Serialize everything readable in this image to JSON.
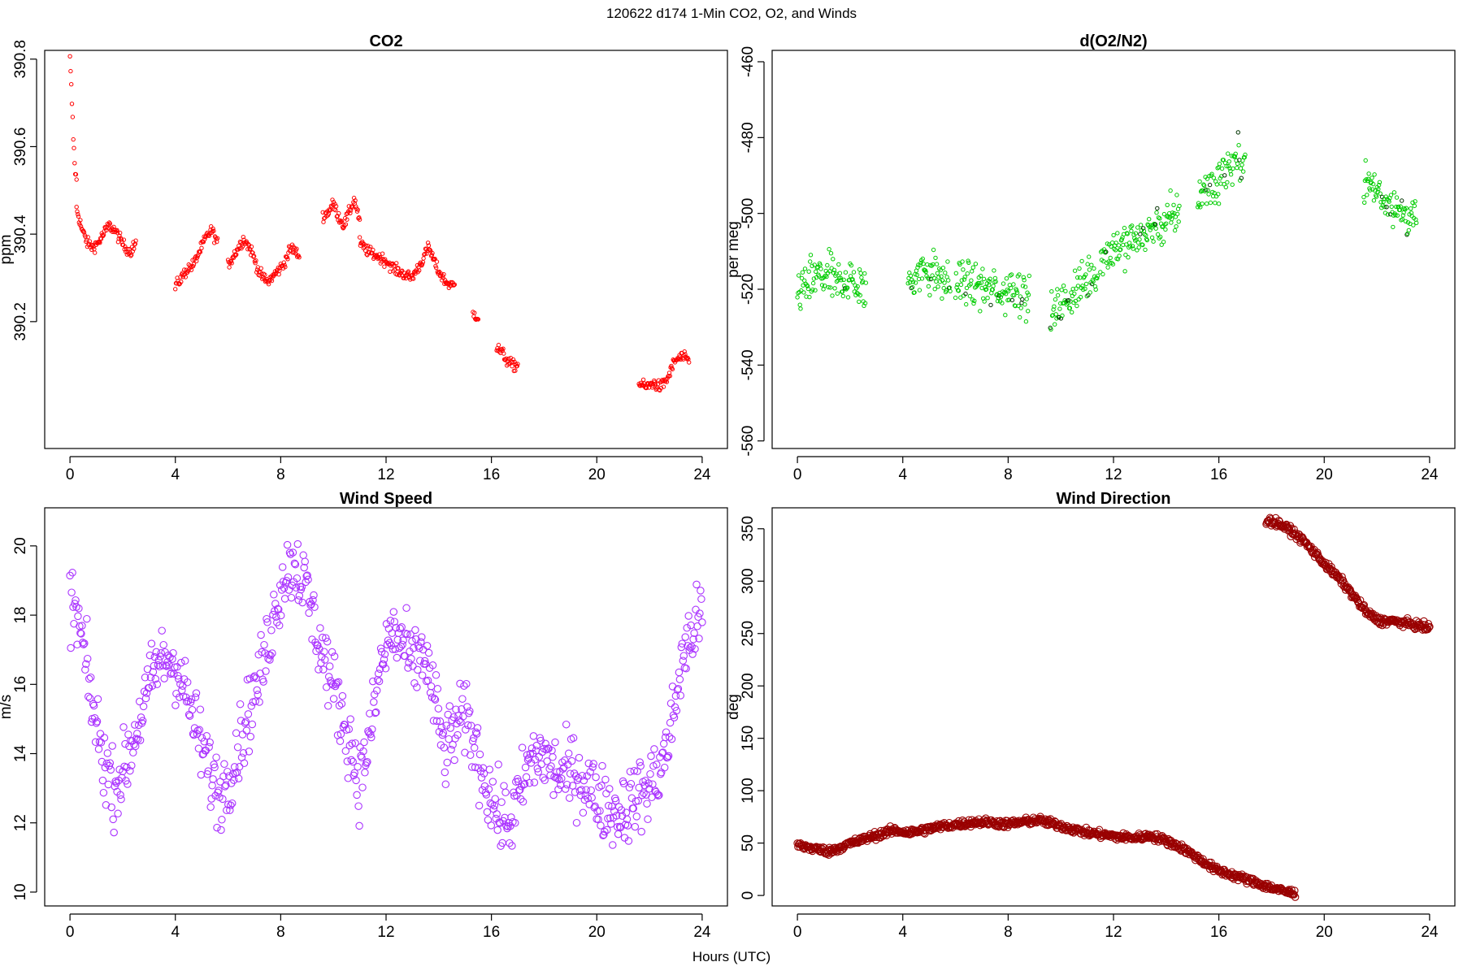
{
  "suptitle": "120622   d174   1-Min CO2, O2, and Winds",
  "xlabel": "Hours (UTC)",
  "chart_data": [
    {
      "type": "scatter",
      "title": "CO2",
      "ylabel": "ppm",
      "color": "#ff0000",
      "xlim": [
        -0.96,
        24.96
      ],
      "ylim": [
        389.91,
        390.82
      ],
      "xticks": [
        0,
        4,
        8,
        12,
        16,
        20,
        24
      ],
      "yticks": [
        390.2,
        390.4,
        390.6,
        390.8
      ],
      "segments": [
        {
          "x0": 0.0,
          "x1": 0.25,
          "y": [
            390.8,
            390.72,
            390.62,
            390.55,
            390.52
          ]
        },
        {
          "x0": 0.25,
          "x1": 2.5,
          "y": [
            390.46,
            390.41,
            390.38,
            390.37,
            390.38,
            390.4,
            390.42,
            390.41,
            390.39,
            390.37,
            390.36,
            390.38
          ]
        },
        {
          "x0": 4.0,
          "x1": 5.6,
          "y": [
            390.28,
            390.3,
            390.32,
            390.33,
            390.36,
            390.39,
            390.41,
            390.38
          ]
        },
        {
          "x0": 6.0,
          "x1": 8.7,
          "y": [
            390.33,
            390.36,
            390.39,
            390.36,
            390.31,
            390.29,
            390.31,
            390.33,
            390.37,
            390.35
          ]
        },
        {
          "x0": 9.6,
          "x1": 11.0,
          "y": [
            390.44,
            390.45,
            390.47,
            390.44,
            390.42,
            390.45,
            390.48,
            390.43
          ]
        },
        {
          "x0": 11.0,
          "x1": 14.6,
          "y": [
            390.38,
            390.36,
            390.35,
            390.34,
            390.32,
            390.31,
            390.3,
            390.33,
            390.37,
            390.32,
            390.29,
            390.28
          ]
        },
        {
          "x0": 15.3,
          "x1": 15.5,
          "y": [
            390.22,
            390.21
          ]
        },
        {
          "x0": 16.2,
          "x1": 17.0,
          "y": [
            390.14,
            390.13,
            390.11,
            390.1,
            390.1
          ]
        },
        {
          "x0": 21.6,
          "x1": 23.5,
          "y": [
            390.06,
            390.05,
            390.06,
            390.05,
            390.07,
            390.11,
            390.12,
            390.11
          ]
        }
      ]
    },
    {
      "type": "scatter",
      "title": "d(O2/N2)",
      "ylabel": "per meg",
      "color": "#00cc00",
      "xlim": [
        -0.96,
        24.96
      ],
      "ylim": [
        -562,
        -457
      ],
      "xticks": [
        0,
        4,
        8,
        12,
        16,
        20,
        24
      ],
      "yticks": [
        -560,
        -540,
        -520,
        -500,
        -480,
        -460
      ],
      "segments": [
        {
          "x0": 0.0,
          "x1": 2.6,
          "y": [
            -520,
            -519,
            -517,
            -516,
            -518,
            -517,
            -519,
            -520
          ]
        },
        {
          "x0": 4.2,
          "x1": 5.8,
          "y": [
            -518,
            -516,
            -515,
            -517,
            -519
          ]
        },
        {
          "x0": 6.0,
          "x1": 8.8,
          "y": [
            -519,
            -518,
            -520,
            -521,
            -519,
            -522
          ]
        },
        {
          "x0": 9.6,
          "x1": 11.4,
          "y": [
            -527,
            -524,
            -521,
            -518,
            -515
          ]
        },
        {
          "x0": 11.5,
          "x1": 14.5,
          "y": [
            -512,
            -509,
            -508,
            -506,
            -504,
            -502,
            -500
          ]
        },
        {
          "x0": 15.2,
          "x1": 16.0,
          "y": [
            -495,
            -492
          ]
        },
        {
          "x0": 16.0,
          "x1": 17.0,
          "y": [
            -490,
            -487,
            -485
          ]
        },
        {
          "x0": 21.5,
          "x1": 23.5,
          "y": [
            -491,
            -494,
            -497,
            -500,
            -502
          ]
        }
      ]
    },
    {
      "type": "scatter",
      "title": "Wind Speed",
      "ylabel": "m/s",
      "color": "#aa33ff",
      "xlim": [
        -0.96,
        24.96
      ],
      "ylim": [
        9.6,
        21.1
      ],
      "xticks": [
        0,
        4,
        8,
        12,
        16,
        20,
        24
      ],
      "yticks": [
        10,
        12,
        14,
        16,
        18,
        20
      ],
      "segments": [
        {
          "x0": 0.0,
          "x1": 24.0,
          "y": [
            18.5,
            17.5,
            15.5,
            14,
            13,
            13.5,
            14.5,
            15.5,
            16.5,
            16.8,
            16.5,
            15.5,
            14.5,
            13.5,
            12.8,
            13.5,
            14.5,
            15.5,
            16.5,
            18,
            19.2,
            19.5,
            18.8,
            17.5,
            16.5,
            15.5,
            14.5,
            13.2,
            14.5,
            16.5,
            17.5,
            17.2,
            16.5,
            17,
            15.5,
            14,
            14.8,
            15,
            14,
            13,
            12.2,
            12,
            12.8,
            13.8,
            14,
            13.6,
            13.3,
            13.5,
            13.2,
            12.8,
            12.5,
            12.3,
            12.5,
            12.8,
            13,
            13.5,
            14.5,
            16.5,
            17.5,
            18
          ]
        }
      ]
    },
    {
      "type": "scatter",
      "title": "Wind Direction",
      "ylabel": "deg",
      "color": "#990000",
      "xlim": [
        -0.96,
        24.96
      ],
      "ylim": [
        -10,
        370
      ],
      "xticks": [
        0,
        4,
        8,
        12,
        16,
        20,
        24
      ],
      "yticks": [
        0,
        50,
        100,
        150,
        200,
        250,
        300,
        350
      ],
      "segments": [
        {
          "x0": 0.0,
          "x1": 18.9,
          "y": [
            48,
            45,
            42,
            48,
            53,
            58,
            62,
            60,
            63,
            66,
            68,
            70,
            70,
            68,
            70,
            72,
            68,
            64,
            60,
            58,
            56,
            55,
            57,
            52,
            45,
            35,
            25,
            20,
            15,
            10,
            5,
            2
          ]
        },
        {
          "x0": 17.8,
          "x1": 24.0,
          "y": [
            358,
            355,
            348,
            338,
            325,
            312,
            300,
            285,
            270,
            262,
            262,
            260,
            258,
            255
          ]
        }
      ]
    }
  ]
}
